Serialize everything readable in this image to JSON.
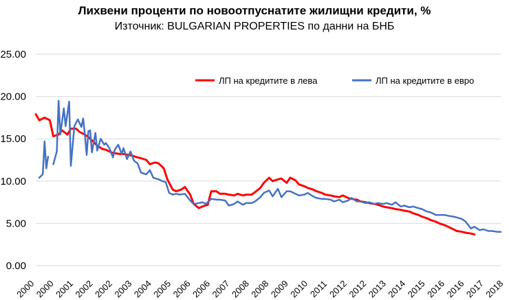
{
  "chart_data": {
    "type": "line",
    "title": "Лихвени проценти по новоотпуснатите жилищни кредити, %",
    "subtitle": "Източник: BULGARIAN PROPERTIES по данни на БНБ",
    "xlabel": "",
    "ylabel": "",
    "ylim": [
      0,
      25
    ],
    "y_ticks": [
      "0.00",
      "5.00",
      "10.00",
      "15.00",
      "20.00",
      "25.00"
    ],
    "x_tick_labels": [
      "2000",
      "2000",
      "2001",
      "2002",
      "2002",
      "2003",
      "2004",
      "2005",
      "2006",
      "2006",
      "2007",
      "2008",
      "2008",
      "2009",
      "2010",
      "2011",
      "2012",
      "2012",
      "2013",
      "2014",
      "2015",
      "2016",
      "2016",
      "2017",
      "2018"
    ],
    "grid": true,
    "legend_position": "top-right",
    "series": [
      {
        "name": "ЛП на кредитите в лева",
        "color": "#ff0000",
        "points": [
          [
            0,
            17.9
          ],
          [
            0.2,
            17.2
          ],
          [
            0.5,
            17.5
          ],
          [
            0.8,
            17.2
          ],
          [
            1.0,
            15.3
          ],
          [
            1.3,
            15.5
          ],
          [
            1.5,
            16.0
          ],
          [
            1.8,
            15.5
          ],
          [
            2.0,
            16.2
          ],
          [
            2.3,
            16.2
          ],
          [
            2.5,
            15.8
          ],
          [
            2.8,
            15.5
          ],
          [
            3.0,
            15.2
          ],
          [
            3.3,
            14.6
          ],
          [
            3.5,
            14.2
          ],
          [
            3.8,
            13.8
          ],
          [
            4.0,
            13.7
          ],
          [
            4.3,
            13.4
          ],
          [
            4.5,
            13.3
          ],
          [
            4.8,
            13.2
          ],
          [
            5.0,
            13.2
          ],
          [
            5.3,
            13.1
          ],
          [
            5.5,
            13.0
          ],
          [
            5.8,
            12.8
          ],
          [
            6.0,
            12.7
          ],
          [
            6.3,
            12.5
          ],
          [
            6.5,
            12.0
          ],
          [
            6.8,
            12.2
          ],
          [
            7.0,
            12.1
          ],
          [
            7.3,
            11.5
          ],
          [
            7.5,
            10.2
          ],
          [
            7.8,
            9.0
          ],
          [
            8.0,
            8.8
          ],
          [
            8.3,
            9.0
          ],
          [
            8.5,
            9.3
          ],
          [
            8.8,
            8.4
          ],
          [
            9.0,
            7.3
          ],
          [
            9.3,
            6.8
          ],
          [
            9.5,
            7.0
          ],
          [
            9.8,
            7.2
          ],
          [
            10.0,
            8.8
          ],
          [
            10.3,
            8.8
          ],
          [
            10.5,
            8.5
          ],
          [
            10.8,
            8.5
          ],
          [
            11.0,
            8.4
          ],
          [
            11.3,
            8.3
          ],
          [
            11.5,
            8.5
          ],
          [
            11.8,
            8.3
          ],
          [
            12.0,
            8.4
          ],
          [
            12.3,
            8.4
          ],
          [
            12.5,
            8.7
          ],
          [
            12.8,
            9.2
          ],
          [
            13.0,
            9.8
          ],
          [
            13.3,
            10.4
          ],
          [
            13.5,
            10.0
          ],
          [
            13.8,
            10.2
          ],
          [
            14.0,
            10.3
          ],
          [
            14.3,
            9.8
          ],
          [
            14.5,
            10.4
          ],
          [
            14.8,
            10.1
          ],
          [
            15.0,
            9.6
          ],
          [
            15.3,
            9.4
          ],
          [
            15.5,
            9.2
          ],
          [
            15.8,
            9.0
          ],
          [
            16.0,
            8.8
          ],
          [
            16.3,
            8.6
          ],
          [
            16.5,
            8.4
          ],
          [
            16.8,
            8.3
          ],
          [
            17.0,
            8.2
          ],
          [
            17.3,
            8.1
          ],
          [
            17.5,
            8.3
          ],
          [
            17.8,
            8.0
          ],
          [
            18.0,
            7.9
          ],
          [
            18.3,
            7.8
          ],
          [
            18.5,
            7.6
          ],
          [
            18.8,
            7.5
          ],
          [
            19.0,
            7.4
          ],
          [
            19.3,
            7.3
          ],
          [
            19.5,
            7.2
          ],
          [
            19.8,
            7.0
          ],
          [
            20.0,
            6.9
          ],
          [
            20.3,
            6.8
          ],
          [
            20.5,
            6.7
          ],
          [
            20.8,
            6.6
          ],
          [
            21.0,
            6.5
          ],
          [
            21.3,
            6.4
          ],
          [
            21.5,
            6.2
          ],
          [
            21.8,
            6.0
          ],
          [
            22.0,
            5.8
          ],
          [
            22.3,
            5.6
          ],
          [
            22.5,
            5.4
          ],
          [
            22.8,
            5.2
          ],
          [
            23.0,
            5.0
          ],
          [
            23.3,
            4.8
          ],
          [
            23.5,
            4.6
          ],
          [
            23.8,
            4.3
          ],
          [
            24.0,
            4.1
          ],
          [
            24.3,
            4.0
          ],
          [
            24.5,
            3.9
          ],
          [
            24.8,
            3.8
          ],
          [
            25.0,
            3.7
          ]
        ]
      },
      {
        "name": "ЛП на кредитите в евро",
        "color": "#4472c4",
        "segments": [
          [
            [
              0.2,
              10.4
            ],
            [
              0.4,
              10.8
            ],
            [
              0.5,
              14.7
            ],
            [
              0.6,
              11.5
            ],
            [
              0.7,
              12.9
            ]
          ],
          [
            [
              1.0,
              12.0
            ],
            [
              1.2,
              13.5
            ],
            [
              1.3,
              19.5
            ],
            [
              1.4,
              15.5
            ],
            [
              1.6,
              18.6
            ],
            [
              1.7,
              16.5
            ],
            [
              1.9,
              19.4
            ],
            [
              2.0,
              11.8
            ],
            [
              2.2,
              16.5
            ],
            [
              2.4,
              17.3
            ],
            [
              2.6,
              16.4
            ],
            [
              2.7,
              17.4
            ],
            [
              2.8,
              15.5
            ],
            [
              2.9,
              13.1
            ],
            [
              3.0,
              15.9
            ],
            [
              3.1,
              16.0
            ],
            [
              3.2,
              13.4
            ],
            [
              3.4,
              15.7
            ],
            [
              3.5,
              13.6
            ],
            [
              3.7,
              15.0
            ],
            [
              3.9,
              14.3
            ],
            [
              4.0,
              14.5
            ],
            [
              4.2,
              13.9
            ],
            [
              4.4,
              12.8
            ],
            [
              4.5,
              13.7
            ],
            [
              4.7,
              14.3
            ],
            [
              4.9,
              13.2
            ],
            [
              5.0,
              13.9
            ],
            [
              5.2,
              12.6
            ],
            [
              5.4,
              13.5
            ],
            [
              5.6,
              12.4
            ],
            [
              5.8,
              12.1
            ],
            [
              6.0,
              11.0
            ],
            [
              6.3,
              10.8
            ],
            [
              6.5,
              11.3
            ],
            [
              6.7,
              10.4
            ],
            [
              7.0,
              10.2
            ],
            [
              7.2,
              10.0
            ],
            [
              7.4,
              9.9
            ],
            [
              7.6,
              8.6
            ],
            [
              7.8,
              8.4
            ],
            [
              8.0,
              8.5
            ],
            [
              8.2,
              8.4
            ],
            [
              8.5,
              8.5
            ],
            [
              8.8,
              7.7
            ],
            [
              9.0,
              7.3
            ],
            [
              9.3,
              7.4
            ],
            [
              9.5,
              7.5
            ],
            [
              9.7,
              7.3
            ],
            [
              10.0,
              7.9
            ],
            [
              10.3,
              7.8
            ],
            [
              10.5,
              7.8
            ],
            [
              10.8,
              7.7
            ],
            [
              11.0,
              7.1
            ],
            [
              11.3,
              7.3
            ],
            [
              11.5,
              7.6
            ],
            [
              11.8,
              7.2
            ],
            [
              12.0,
              7.4
            ],
            [
              12.3,
              7.4
            ],
            [
              12.5,
              7.6
            ],
            [
              12.8,
              8.1
            ],
            [
              13.0,
              8.6
            ],
            [
              13.3,
              8.9
            ],
            [
              13.5,
              8.2
            ],
            [
              13.8,
              9.1
            ],
            [
              14.0,
              8.1
            ],
            [
              14.3,
              8.8
            ],
            [
              14.5,
              8.8
            ],
            [
              14.8,
              8.5
            ],
            [
              15.0,
              8.3
            ],
            [
              15.3,
              8.4
            ],
            [
              15.5,
              8.6
            ],
            [
              15.8,
              8.2
            ],
            [
              16.0,
              8.0
            ],
            [
              16.3,
              7.9
            ],
            [
              16.5,
              7.9
            ],
            [
              16.8,
              7.8
            ],
            [
              17.0,
              7.6
            ],
            [
              17.3,
              7.8
            ],
            [
              17.5,
              7.5
            ],
            [
              17.8,
              7.7
            ],
            [
              18.0,
              8.0
            ],
            [
              18.3,
              7.6
            ],
            [
              18.5,
              7.6
            ],
            [
              18.8,
              7.4
            ],
            [
              19.0,
              7.5
            ],
            [
              19.3,
              7.3
            ],
            [
              19.5,
              7.4
            ],
            [
              19.8,
              7.3
            ],
            [
              20.0,
              7.4
            ],
            [
              20.3,
              7.2
            ],
            [
              20.5,
              7.5
            ],
            [
              20.8,
              7.0
            ],
            [
              21.0,
              7.1
            ],
            [
              21.3,
              6.9
            ],
            [
              21.5,
              7.0
            ],
            [
              21.8,
              6.8
            ],
            [
              22.0,
              6.7
            ],
            [
              22.3,
              6.4
            ],
            [
              22.5,
              6.3
            ],
            [
              22.8,
              6.0
            ],
            [
              23.0,
              6.0
            ],
            [
              23.3,
              6.0
            ],
            [
              23.5,
              5.9
            ],
            [
              23.8,
              5.8
            ],
            [
              24.0,
              5.7
            ],
            [
              24.3,
              5.5
            ],
            [
              24.5,
              5.2
            ],
            [
              24.8,
              4.4
            ],
            [
              25.0,
              4.6
            ],
            [
              25.3,
              4.2
            ],
            [
              25.5,
              4.3
            ],
            [
              25.8,
              4.1
            ],
            [
              26.0,
              4.1
            ],
            [
              26.3,
              4.0
            ],
            [
              26.5,
              4.0
            ]
          ]
        ]
      }
    ]
  }
}
